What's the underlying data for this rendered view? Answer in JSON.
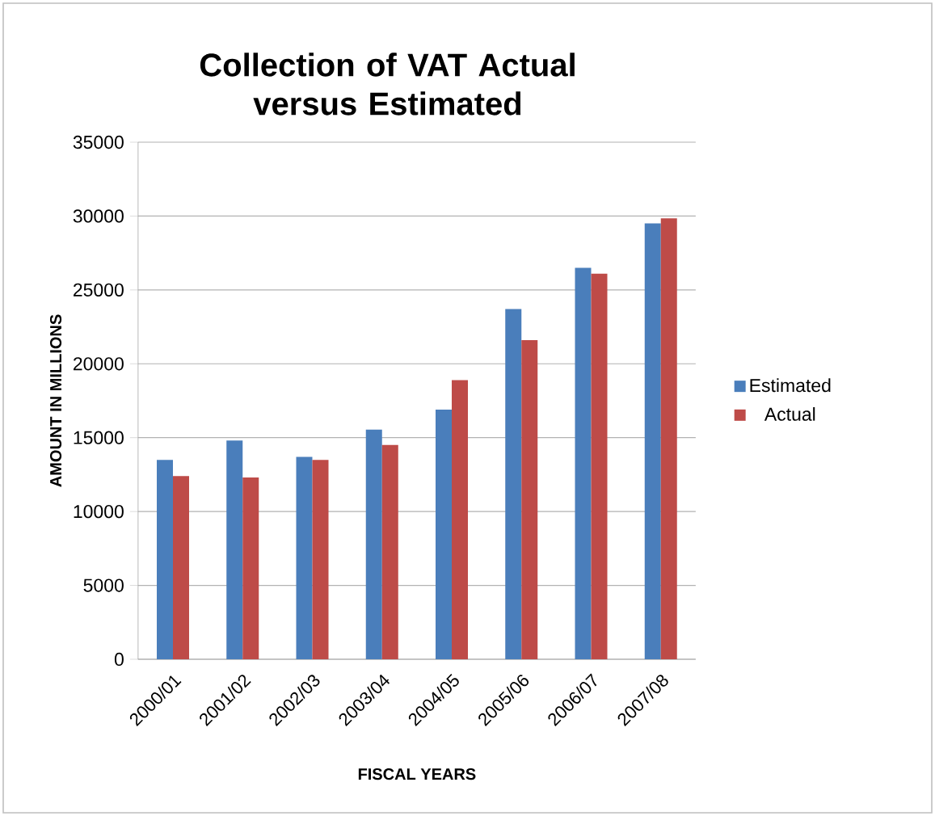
{
  "chart_data": {
    "type": "bar",
    "title": "Collection of VAT Actual versus Estimated",
    "xlabel": "FISCAL YEARS",
    "ylabel": "AMOUNT IN MILLIONS",
    "categories": [
      "2000/01",
      "2001/02",
      "2002/03",
      "2003/04",
      "2004/05",
      "2005/06",
      "2006/07",
      "2007/08"
    ],
    "series": [
      {
        "name": "Estimated",
        "color": "#4a7ebb",
        "values": [
          13500,
          14800,
          13700,
          15550,
          16900,
          23700,
          26500,
          29500
        ]
      },
      {
        "name": "Actual",
        "color": "#be4b48",
        "values": [
          12400,
          12300,
          13500,
          14500,
          18900,
          21600,
          26100,
          29850
        ]
      }
    ],
    "ylim": [
      0,
      35000
    ],
    "yticks": [
      0,
      5000,
      10000,
      15000,
      20000,
      25000,
      30000,
      35000
    ],
    "grid": "y",
    "legend": "right"
  }
}
